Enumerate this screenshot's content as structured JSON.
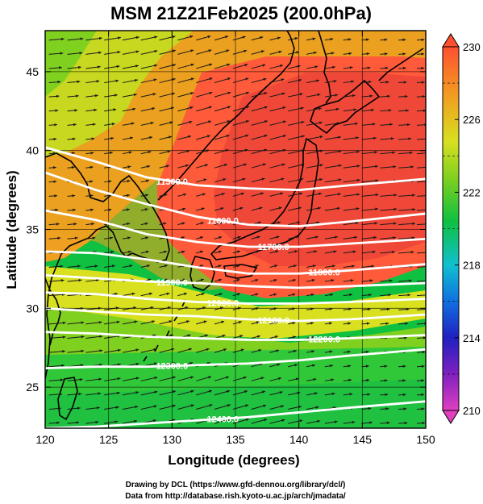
{
  "chart_data": {
    "type": "heatmap",
    "title": "MSM 21Z21Feb2025 (200.0hPa)",
    "xlabel": "Longitude (degrees)",
    "ylabel": "Latitude  (degrees)",
    "xlim": [
      120,
      150
    ],
    "ylim": [
      22.4,
      47.6
    ],
    "x_ticks": [
      120,
      125,
      130,
      135,
      140,
      145,
      150
    ],
    "y_ticks": [
      25,
      30,
      35,
      40,
      45
    ],
    "colorbar": {
      "min": 210,
      "max": 230,
      "ticks": [
        210,
        214,
        218,
        222,
        226,
        230
      ],
      "colors": [
        "#e040c0",
        "#8020c0",
        "#2020c0",
        "#1070e0",
        "#10c0d0",
        "#10c040",
        "#80d020",
        "#d8e020",
        "#f0a020",
        "#ff5030"
      ]
    },
    "contours": [
      {
        "label": "11500.0",
        "points": [
          [
            120,
            40.2
          ],
          [
            124,
            39.3
          ],
          [
            128,
            38.3
          ],
          [
            132,
            37.8
          ],
          [
            136,
            37.6
          ],
          [
            140,
            37.5
          ],
          [
            144,
            37.8
          ],
          [
            150,
            38.2
          ]
        ]
      },
      {
        "label": "11600.0",
        "points": [
          [
            120,
            38.6
          ],
          [
            124,
            37.5
          ],
          [
            128,
            36.6
          ],
          [
            132,
            35.8
          ],
          [
            136,
            35.3
          ],
          [
            140,
            35.2
          ],
          [
            144,
            35.5
          ],
          [
            150,
            36.0
          ]
        ]
      },
      {
        "label": "11700.0",
        "points": [
          [
            120,
            36.2
          ],
          [
            124,
            35.6
          ],
          [
            128,
            34.7
          ],
          [
            132,
            34.2
          ],
          [
            136,
            33.9
          ],
          [
            140,
            33.9
          ],
          [
            144,
            34.1
          ],
          [
            150,
            34.4
          ]
        ]
      },
      {
        "label": "11800.0",
        "points": [
          [
            120,
            33.6
          ],
          [
            124,
            33.5
          ],
          [
            128,
            33.1
          ],
          [
            132,
            32.6
          ],
          [
            136,
            32.2
          ],
          [
            140,
            32.2
          ],
          [
            144,
            32.4
          ],
          [
            150,
            32.8
          ]
        ]
      },
      {
        "label": "11900.0",
        "points": [
          [
            120,
            32.1
          ],
          [
            124,
            31.9
          ],
          [
            128,
            31.7
          ],
          [
            132,
            31.6
          ],
          [
            136,
            31.4
          ],
          [
            140,
            31.3
          ],
          [
            144,
            31.4
          ],
          [
            150,
            31.6
          ]
        ]
      },
      {
        "label": "12000.0",
        "points": [
          [
            120,
            31.0
          ],
          [
            124,
            30.9
          ],
          [
            128,
            30.6
          ],
          [
            132,
            30.4
          ],
          [
            136,
            30.3
          ],
          [
            140,
            30.3
          ],
          [
            144,
            30.4
          ],
          [
            150,
            30.6
          ]
        ]
      },
      {
        "label": "12100.0",
        "points": [
          [
            120,
            30.0
          ],
          [
            124,
            29.8
          ],
          [
            128,
            29.6
          ],
          [
            132,
            29.5
          ],
          [
            136,
            29.3
          ],
          [
            140,
            29.2
          ],
          [
            144,
            29.3
          ],
          [
            150,
            29.6
          ]
        ]
      },
      {
        "label": "12200.0",
        "points": [
          [
            120,
            28.5
          ],
          [
            124,
            28.4
          ],
          [
            128,
            28.2
          ],
          [
            132,
            28.1
          ],
          [
            136,
            28.0
          ],
          [
            140,
            28.0
          ],
          [
            144,
            28.1
          ],
          [
            150,
            28.3
          ]
        ]
      },
      {
        "label": "12300.0",
        "points": [
          [
            120,
            26.2
          ],
          [
            124,
            26.3
          ],
          [
            128,
            26.3
          ],
          [
            132,
            26.4
          ],
          [
            136,
            26.5
          ],
          [
            140,
            26.7
          ],
          [
            144,
            27.0
          ],
          [
            150,
            27.4
          ]
        ]
      },
      {
        "label": "12400.0",
        "points": [
          [
            120,
            22.4
          ],
          [
            124,
            22.5
          ],
          [
            128,
            22.7
          ],
          [
            132,
            22.9
          ],
          [
            136,
            23.1
          ],
          [
            140,
            23.4
          ],
          [
            144,
            23.7
          ],
          [
            150,
            24.1
          ]
        ]
      }
    ],
    "wind_field": {
      "description": "westerly wind vectors",
      "mean_direction_deg": 80
    }
  },
  "footer": {
    "line1": "Drawing by DCL (https://www.gfd-dennou.org/library/dcl/)",
    "line2": "Data from http://database.rish.kyoto-u.ac.jp/arch/jmadata/"
  },
  "map": {
    "coastline_color": "#000000",
    "contour_color": "#ffffff",
    "vector_color": "#1a1a1a"
  }
}
